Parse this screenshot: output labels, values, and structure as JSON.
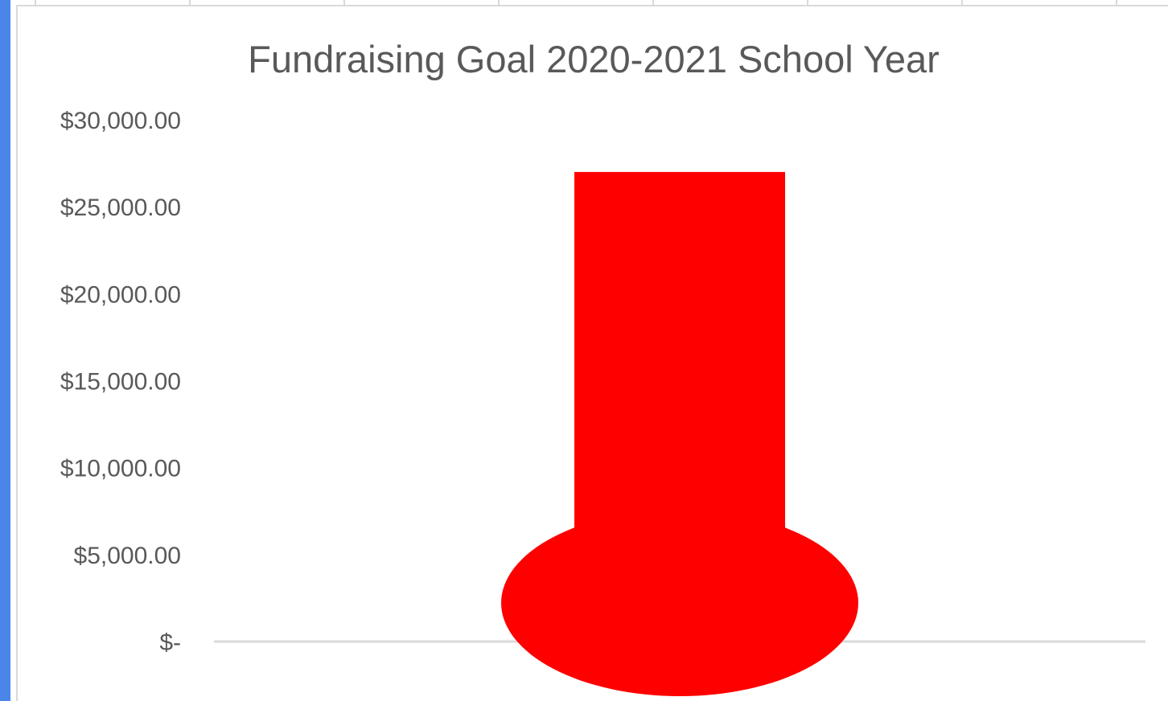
{
  "chart_data": {
    "type": "bar",
    "title": "Fundraising Goal 2020-2021 School Year",
    "categories": [
      ""
    ],
    "values": [
      27000
    ],
    "ylim": [
      0,
      30000
    ],
    "yticks": [
      0,
      5000,
      10000,
      15000,
      20000,
      25000,
      30000
    ],
    "ytick_labels": [
      "$-",
      "$5,000.00",
      "$10,000.00",
      "$15,000.00",
      "$20,000.00",
      "$25,000.00",
      "$30,000.00"
    ],
    "xlabel": "",
    "ylabel": "",
    "grid": false,
    "legend": "none",
    "bar_color": "#ff0000",
    "axis_color": "#d9d9d9",
    "text_color": "#595959",
    "bulb_shape": "ellipse"
  }
}
